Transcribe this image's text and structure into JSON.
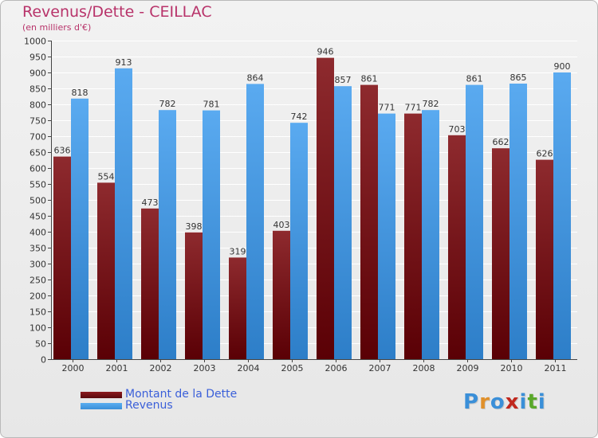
{
  "title": "Revenus/Dette - CEILLAC",
  "subtitle": "(en milliers d'€)",
  "colors": {
    "debt": "#8b1a1e",
    "debt_dark": "#5a0a0e",
    "revenue": "#3a8fd8",
    "revenue_light": "#5aaef0",
    "title": "#b8336a",
    "legend_text": "#3a5fd9"
  },
  "chart_data": {
    "type": "bar",
    "title": "Revenus/Dette - CEILLAC",
    "ylabel": "(en milliers d'€)",
    "xlabel": "",
    "categories": [
      "2000",
      "2001",
      "2002",
      "2003",
      "2004",
      "2005",
      "2006",
      "2007",
      "2008",
      "2009",
      "2010",
      "2011"
    ],
    "series": [
      {
        "name": "Montant de la Dette",
        "values": [
          636,
          554,
          473,
          398,
          319,
          403,
          946,
          861,
          771,
          703,
          662,
          626
        ]
      },
      {
        "name": "Revenus",
        "values": [
          818,
          913,
          782,
          781,
          864,
          742,
          857,
          771,
          782,
          861,
          865,
          900
        ]
      }
    ],
    "ylim": [
      0,
      1000
    ],
    "ytick_step": 50,
    "grid": true,
    "legend": "bottom-left"
  },
  "legend": {
    "debt_label": "Montant de la Dette",
    "revenue_label": "Revenus"
  },
  "logo": {
    "text": "Proxiti",
    "letter_colors": [
      "#3a8fd8",
      "#e0902a",
      "#3a8fd8",
      "#c0281e",
      "#3a8fd8",
      "#5aa82a",
      "#3a8fd8"
    ]
  }
}
